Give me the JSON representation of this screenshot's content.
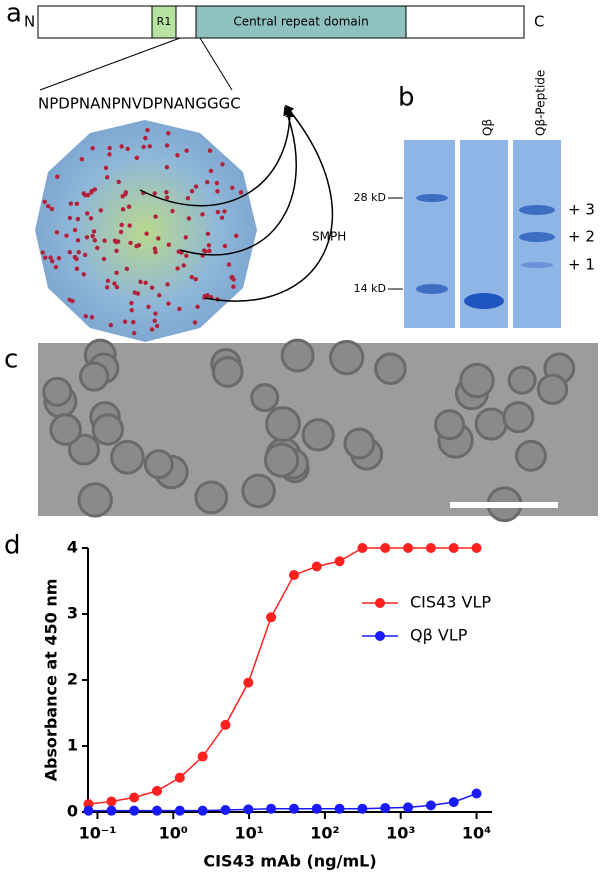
{
  "panels": {
    "a": {
      "label": "a",
      "n_term": "N",
      "r1": "R1",
      "central": "Central repeat domain",
      "c_term": "C",
      "peptide": "NPDPNANPNVDPNANGGGC",
      "linker": "SMPH"
    },
    "b": {
      "label": "b",
      "lanes": [
        "Qβ",
        "Qβ-Peptide"
      ],
      "markers": [
        "28 kD",
        "14 kD"
      ],
      "bands": [
        "+ 3",
        "+ 2",
        "+ 1"
      ]
    },
    "c": {
      "label": "c"
    },
    "d": {
      "label": "d"
    }
  },
  "chart_data": {
    "type": "line",
    "x_label": "CIS43 mAb (ng/mL)",
    "y_label": "Absorbance at 450 nm",
    "log_x": true,
    "x": [
      0.076,
      0.153,
      0.305,
      0.61,
      1.22,
      2.44,
      4.88,
      9.77,
      19.5,
      39.1,
      78.1,
      156.25,
      312.5,
      625,
      1250,
      2500,
      5000,
      10000
    ],
    "series": [
      {
        "name": "CIS43 VLP",
        "color": "#ff2020",
        "values": [
          0.12,
          0.16,
          0.22,
          0.32,
          0.52,
          0.84,
          1.32,
          1.96,
          2.95,
          3.59,
          3.72,
          3.8,
          4.0,
          4.0,
          4.0,
          4.0,
          4.0,
          4.0
        ]
      },
      {
        "name": "Qβ VLP",
        "color": "#1a1aff",
        "values": [
          0.02,
          0.02,
          0.02,
          0.02,
          0.02,
          0.02,
          0.03,
          0.04,
          0.05,
          0.05,
          0.05,
          0.05,
          0.05,
          0.06,
          0.07,
          0.1,
          0.15,
          0.28
        ]
      }
    ],
    "xlim": [
      0.075,
      16000
    ],
    "ylim": [
      0,
      4
    ],
    "xticks": [
      {
        "value": 0.1,
        "label": "10⁻¹"
      },
      {
        "value": 1,
        "label": "10⁰"
      },
      {
        "value": 10,
        "label": "10¹"
      },
      {
        "value": 100,
        "label": "10²"
      },
      {
        "value": 1000,
        "label": "10³"
      },
      {
        "value": 10000,
        "label": "10⁴"
      }
    ],
    "yticks": [
      0,
      1,
      2,
      3,
      4
    ]
  }
}
